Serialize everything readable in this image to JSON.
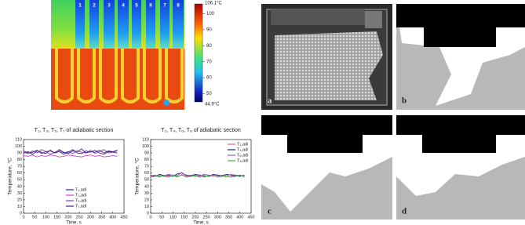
{
  "thermal_image": {
    "tube_labels": [
      "1",
      "2",
      "3",
      "4",
      "5",
      "6",
      "7",
      "8"
    ],
    "colorbar": {
      "lim": [
        {
          "value": 44.9,
          "label": "44.9°C"
        },
        {
          "value": 106.1,
          "label": "106.1°C"
        }
      ],
      "ticks": [
        100,
        90,
        80,
        70,
        60,
        50
      ]
    }
  },
  "panels": {
    "a": "a",
    "b": "b",
    "c": "c",
    "d": "d"
  },
  "chart_data": [
    {
      "type": "line",
      "title": "T₁, T₃, T₅, T₇ of adiabatic section",
      "x_label": "Time, s",
      "y_label": "Temperature, °C",
      "x": [
        0,
        20,
        40,
        60,
        80,
        100,
        120,
        140,
        160,
        180,
        200,
        220,
        240,
        260,
        280,
        300,
        320,
        340,
        360,
        380,
        400,
        420
      ],
      "series": [
        {
          "name": "T₁,adi",
          "color": "#2a2a8a",
          "values": [
            90,
            92,
            88,
            93,
            91,
            89,
            94,
            90,
            92,
            88,
            91,
            95,
            90,
            89,
            93,
            91,
            94,
            90,
            88,
            92,
            91,
            90
          ]
        },
        {
          "name": "T₃,adi",
          "color": "#d040d0",
          "values": [
            86,
            85,
            87,
            84,
            86,
            85,
            87,
            86,
            84,
            85,
            87,
            86,
            85,
            84,
            86,
            87,
            85,
            86,
            84,
            85,
            86,
            85
          ]
        },
        {
          "name": "T₅,adi",
          "color": "#8040c0",
          "values": [
            91,
            89,
            93,
            90,
            95,
            92,
            88,
            91,
            94,
            90,
            92,
            89,
            93,
            91,
            90,
            94,
            89,
            92,
            95,
            90,
            91,
            93
          ]
        },
        {
          "name": "T₇,adi",
          "color": "#502070",
          "values": [
            93,
            90,
            91,
            94,
            89,
            92,
            93,
            90,
            95,
            91,
            89,
            93,
            92,
            96,
            90,
            92,
            91,
            94,
            90,
            93,
            92,
            94
          ]
        }
      ],
      "xlim": [
        0,
        450
      ],
      "xticks": [
        0,
        50,
        100,
        150,
        200,
        250,
        300,
        350,
        400,
        450
      ],
      "ylim": [
        0,
        110
      ],
      "yticks": [
        0,
        10,
        20,
        30,
        40,
        50,
        60,
        70,
        80,
        90,
        100,
        110
      ],
      "legend": "lower center"
    },
    {
      "type": "line",
      "title": "T₂, T₄, T₆, T₈ of adiabatic section",
      "x_label": "Time, s",
      "y_label": "Temperature, °C",
      "x": [
        0,
        20,
        40,
        60,
        80,
        100,
        120,
        140,
        160,
        180,
        200,
        220,
        240,
        260,
        280,
        300,
        320,
        340,
        360,
        380,
        400,
        420
      ],
      "series": [
        {
          "name": "T₂,adi",
          "color": "#e060a0",
          "values": [
            55,
            56,
            54,
            57,
            55,
            56,
            54,
            58,
            55,
            56,
            57,
            55,
            54,
            56,
            55,
            57,
            56,
            54,
            55,
            56,
            57,
            55
          ]
        },
        {
          "name": "T₄,adi",
          "color": "#202080",
          "values": [
            57,
            55,
            58,
            56,
            57,
            55,
            59,
            60,
            57,
            56,
            58,
            57,
            56,
            55,
            58,
            57,
            56,
            58,
            57,
            56,
            55,
            57
          ]
        },
        {
          "name": "T₆,adi",
          "color": "#9060c0",
          "values": [
            56,
            57,
            55,
            56,
            58,
            57,
            56,
            61,
            56,
            57,
            55,
            56,
            58,
            57,
            56,
            55,
            57,
            56,
            58,
            57,
            56,
            55
          ]
        },
        {
          "name": "T₈,adi",
          "color": "#40b040",
          "values": [
            54,
            55,
            56,
            55,
            54,
            56,
            55,
            57,
            54,
            55,
            56,
            54,
            55,
            56,
            57,
            54,
            55,
            56,
            54,
            55,
            57,
            54
          ]
        }
      ],
      "xlim": [
        0,
        450
      ],
      "xticks": [
        0,
        50,
        100,
        150,
        200,
        250,
        300,
        350,
        400,
        450
      ],
      "ylim": [
        0,
        110
      ],
      "yticks": [
        0,
        10,
        20,
        30,
        40,
        50,
        60,
        70,
        80,
        90,
        100,
        110
      ],
      "legend": "upper right"
    }
  ]
}
